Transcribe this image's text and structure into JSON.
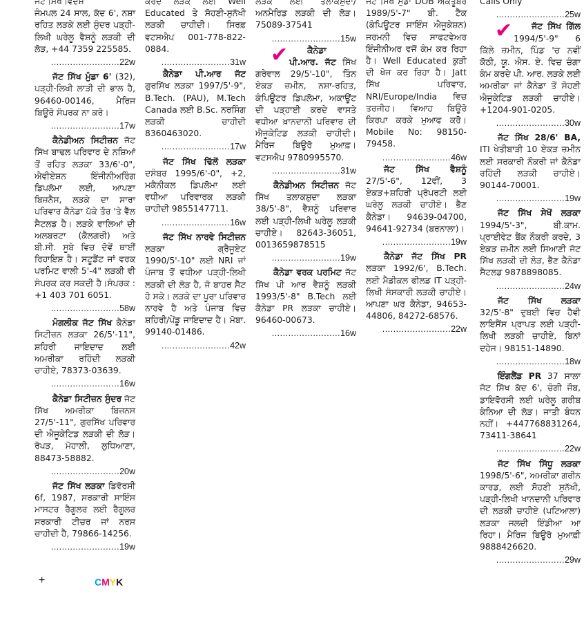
{
  "accent_color": "#e6007e",
  "columns": [
    {
      "fragment": "ਜੱਟ ਸਿੱਖ ਵਿਦੇਸ਼",
      "ads": [
        {
          "heading": "",
          "body": "ਜੰਮਪਲ 24 ਸਾਲ, ਕੱਦ 6', ਨਸ਼ਾ ਰਹਿਤ ਲੜਕੇ ਲਈ ਸੁੰਦਰ ਪੜ੍ਹੀ-ਲਿਖੀ ਘਰੇਲੂ ਵੈਸ਼ਨੂੰ ਲੜਕੀ ਦੀ ਲੋੜ, +44 7359 225585.",
          "code": "22w",
          "check": false,
          "noindent": true
        },
        {
          "heading": "ਜੱਟ ਸਿੱਖ ਮੁੰਡਾ 6'",
          "body": " (32), ਪੜ੍ਹੀ-ਲਿਖੀ ਲਾੜੀ ਦੀ ਭਾਲ ਹੈ, 96460-00146, ਮੈਰਿਜ ਬਿਊਰੋ ਸੰਪਰਕ ਨਾ ਕਰੋ।",
          "code": "17w",
          "check": false
        },
        {
          "heading": "ਕੈਨੇਡੀਅਨ ਸਿਟੀਜ਼ਨ",
          "body": " ਜੱਟ ਸਿੱਖ ਬਾਢਲ ਪਰਿਵਾਰ ਦੇ ਨਸ਼ਿਆਂ ਤੋਂ ਰਹਿਤ ਲੜਕਾ 33/6'-0\", ਐਵੀਏਸ਼ਨ ਇੰਜੀਨੀਅਰਿੰਗ ਡਿਪਲੋਮਾ ਲਈ, ਆਪਣਾ ਬਿਜ਼ਨੈਸ, ਲੜਕੇ ਦਾ ਸਾਰਾ ਪਰਿਵਾਰ ਕੈਨੇਡਾ ਪੱਕੇ ਤੌਰ 'ਤੇ ਵੈੱਲ ਸੈਟਲਡ ਹੈ। ਲੜਕੇ ਵਾਲਿਆਂ ਦੀ ਅਲਬਰਟਾ (ਕੈਲਗਰੀ) ਅਤੇ ਬੀ.ਸੀ. ਸੂਬੇ ਵਿਚ ਦੋਵੇਂ ਥਾਈਂ ਰਿਹਾਇਸ਼ ਹੈ। ਸਟੂਡੈਂਟ ਜਾਂ ਵਰਕ ਪਰਮਿਟ ਵਾਲੀ 5'-4\" ਲੜਕੀ ਵੀ ਸੰਪਰਕ ਕਰ ਸਕਦੀ ਹੈ।ਸੰਪਰਕ : +1 403 701 6051.",
          "code": "58w",
          "check": false
        },
        {
          "heading": "ਮੰਗਲੀਕ ਜੱਟ ਸਿੱਖ",
          "body": " ਕੈਨੇਡਾ ਸਿਟੀਜ਼ਨ ਲੜਕਾ 26/5'-11\", ਸ਼ਹਿਰੀ ਜਾਇਦਾਦ ਲਈ ਅਮਰੀਕਾ ਰਹਿੰਦੀ ਲੜਕੀ ਚਾਹੀਏ, 78373-03639.",
          "code": "16w",
          "check": false
        },
        {
          "heading": "ਕੈਨੇਡਾ ਸਿਟੀਜ਼ਨ ਸੁੰਦਰ",
          "body": " ਜੱਟ ਸਿੱਖ ਅਮਰੀਕਾ ਬਿਜ਼ਨਸ 27/5'-11\", ਗੁਰਸਿੱਖ ਪਰਿਵਾਰ ਦੀ ਐਜੂਕੇਟਿਡ ਲੜਕੀ ਦੀ ਲੋੜ। ਰੋਪੜ, ਮੋਹਾਲੀ, ਲੁਧਿਆਣਾ, 88473-58882.",
          "code": "20w",
          "check": false
        },
        {
          "heading": "ਜੱਟ ਸਿੱਖ ਲੜਕਾ",
          "body": " ਡਿਵੋਰਸੀ 6f, 1987, ਸਰਕਾਰੀ ਸਾਇੰਸ ਮਾਸਟਰ ਰੈਗੂਲਰ ਲਈ ਰੈਗੂਲਰ ਸਰਕਾਰੀ ਟੀਚਰ ਜਾਂ ਨਰਸ ਚਾਹੀਦੀ ਹੈ, 79866-14256.",
          "code": "19w",
          "check": false
        }
      ]
    },
    {
      "fragment": "ਕਰਦੇ ਲੜਕੇ ਲਈ Well Educated ਤੇ ਸੋਹਣੀ-ਸੁਨੱਖੀ ਲੜਕੀ ਚਾਹੀਦੀ। ਸਿਰਫ਼ ਵਟਸਐਪ 001-778-822-0884.",
      "fragment_code": "31w",
      "ads": [
        {
          "heading": "ਕੈਨੇਡਾ ਪੀ.ਆਰ ਜੱਟ",
          "body": " ਗੁਰਸਿੱਖ ਲੜਕਾ 1997/5'-9\", B.Tech. (PAU), M.Tech Canada ਲਈ B.Sc. ਨਰਸਿੰਗ ਲੜਕੀ ਚਾਹੀਦੀ 8360463020.",
          "code": "17w",
          "check": false
        },
        {
          "heading": "ਜੱਟ ਸਿੱਖ ਢਿੱਲੋਂ ਲੜਕਾ",
          "body": " ਦਸੰਬਰ 1995/6'-0\", +2, ਮਕੈਨੀਕਲ ਡਿਪਲੋਮਾ ਲਈ ਵਧੀਆ ਪਰਿਵਾਰਕ ਲੜਕੀ ਚਾਹੀਦੀ 9855147711.",
          "code": "16w",
          "check": false
        },
        {
          "heading": "ਜੱਟ ਸਿੱਖ ਨਾਰਵੇ ਸਿਟੀਜ਼ਨ",
          "body": " ਲੜਕਾ ਗ੍ਰੈਜੂਏਟ 1990/5'-10\" ਲਈ NRI ਜਾਂ ਪੰਜਾਬ ਤੋਂ ਵਧੀਆ ਪੜ੍ਹੀ-ਲਿਖੀ ਲੜਕੀ ਦੀ ਲੋੜ ਹੈ, ਜੋ ਬਾਹਰ ਸੈੱਟ ਹੋ ਸਕੇ। ਲੜਕੇ ਦਾ ਪੂਰਾ ਪਰਿਵਾਰ ਨਾਰਵੇ ਹੈ ਅਤੇ ਪੰਜਾਬ ਵਿਚ ਸ਼ਹਿਰੀ/ਪੇਂਡੂ ਜਾਇਦਾਦ ਹੈ। ਮੋਬਾ. 99140-01486.",
          "code": "42w",
          "check": false
        }
      ]
    },
    {
      "fragment": "ਲੜਕੇ ਲਈ ਤਲਾਕਸ਼ੁਦਾ/ਅਨਮੈਰਿਡ ਲੜਕੀ ਦੀ ਲੋੜ। 75089-37541",
      "fragment_code": "15w",
      "ads": [
        {
          "heading": "ਕੈਨੇਡਾ ਪੀ.ਆਰ. ਜੱਟ",
          "body": " ਸਿੱਖ ਗਰੇਵਾਲ 29/5'-10\", ਤਿੰਨ ਏਕੜ ਜ਼ਮੀਨ, ਨਸ਼ਾ-ਰਹਿਤ, ਕੰਪਿਊਟਰ ਡਿਪਲੋਮਾ, ਅਕਾਊਂਟ ਦੀ ਪੜ੍ਹਾਈ ਕਰਦੇ ਵਾਸਤੇ ਵਧੀਆ ਖ਼ਾਨਦਾਨੀ ਪਰਿਵਾਰ ਦੀ ਐਜੂਕੇਟਿਡ ਲੜਕੀ ਚਾਹੀਦੀ। ਮੈਰਿਜ ਬਿਊਰੋ ਮੁਆਫ਼। ਵਟਸਐਪ 9780995570.",
          "code": "31w",
          "check": true
        },
        {
          "heading": "ਕੈਨੇਡੀਅਨ ਸਿਟੀਜ਼ਨ",
          "body": " ਜੱਟ ਸਿੱਖ ਤਲਾਕਸ਼ੁਦਾ ਲੜਕਾ 38/5'-8\", ਵੈਸ਼ਨੂੰ ਪਰਿਵਾਰ ਲਈ ਪੜ੍ਹੀ-ਲਿਖੀ ਘਰੇਲੂ ਲੜਕੀ ਚਾਹੀਏ। 82643-36051, 0013659878515",
          "code": "19w",
          "check": false
        },
        {
          "heading": "ਕੈਨੇਡਾ ਵਰਕ ਪਰਮਿਟ",
          "body": " ਜੱਟ ਸਿੱਖ ਪੀ ਆਰ ਵੈਸ਼ਨੂੰ ਲੜਕੀ 1993/5'-8\" B.Tech ਲਈ ਕੈਨੇਡਾ PR ਲੜਕਾ ਚਾਹੀਏ। 96460-00673.",
          "code": "16w",
          "check": false
        }
      ]
    },
    {
      "fragment": "ਜੱਟ ਸਿੱਖ ਮੁੰਡਾ DOB ਅਕਤੂਬਰ 1989/5'-7\" ਬੀ. ਟੈੱਕ (ਕੰਪਿਊਟਰ ਸਾਇੰਸ ਐਜੂਕੇਸ਼ਨ) ਜਰਮਨੀ ਵਿਚ ਸਾਫਟਵੇਅਰ ਇੰਜੀਨੀਅਰ ਵਜੋਂ ਕੰਮ ਕਰ ਰਿਹਾ ਹੈ। Well Educated ਕੁੜੀ ਦੀ ਖੋਜ ਕਰ ਰਿਹਾ ਹੈ। Jatt ਸਿੱਖ ਪਰਿਵਾਰ, NRI/Europe/India ਵਿਚ ਤਰਜੀਹ। ਵਿਆਹ ਬਿਊਰੋ ਕਿਰਪਾ ਕਰਕੇ ਮੁਆਫ ਕਰੋ। Mobile No: 98150-79458.",
      "fragment_code": "46w",
      "ads": [
        {
          "heading": "ਜੱਟ ਸਿੱਖ ਵੈਸ਼ਨੂੰ",
          "body": " 27/5'-6\", 12ਵੀਂ, 3 ਏਕੜ+ਸ਼ਹਿਰੀ ਪ੍ਰੋਪਰਟੀ ਲਈ ਘਰੇਲੂ ਲੜਕੀ ਚਾਹੀਏ। ਭੈਣ ਕੈਨੇਡਾ। 94639-04700, 94641-92734 (ਬਰਨਾਲਾ)।",
          "code": "19w",
          "check": false
        },
        {
          "heading": "ਕੈਨੇਡਾ ਜੱਟ ਸਿੱਖ PR",
          "body": " ਲੜਕਾ 1992/6', B.Tech. ਲਈ ਮੈਡੀਕਲ ਫੀਲਡ IT ਪੜ੍ਹੀ-ਲਿਖੀ ਸੰਸਕਾਰੀ ਲੜਕੀ ਚਾਹੀਏ। ਆਪਣਾ ਘਰ ਕੈਨੇਡਾ, 94653-44806, 84272-68576.",
          "code": "22w",
          "check": false
        }
      ]
    },
    {
      "fragment": "Calls Only",
      "fragment_code": "25w",
      "ads": [
        {
          "heading": "ਜੱਟ ਸਿੱਖ ਗਿੱਲ",
          "body": " 1994/5'-9\" 6 ਕਿੱਲੇ ਜ਼ਮੀਨ, ਪਿੰਡ 'ਚ ਨਵੀਂ ਕੋਠੀ, ਯੂ. ਐਸ. ਏ. ਵਿਚ ਚੰਗਾ ਕੰਮ ਕਰਦੇ ਪੀ. ਆਰ. ਲੜਕੇ ਲਈ ਅਮਰੀਕਾ ਜਾਂ ਕੈਨੇਡਾ ਤੋਂ ਸੋਹਣੀ ਐਜੂਕੇਟਿਡ ਲੜਕੀ ਚਾਹੀਏ। +1204-901-0205.",
          "code": "30w",
          "check": true
        },
        {
          "heading": "ਜੱਟ ਸਿੱਖ 28/6' BA,",
          "body": " ITI ਖੇਤੀਬਾੜੀ 10 ਏਕੜ ਜ਼ਮੀਨ ਲਈ ਸਰਕਾਰੀ ਨੌਕਰੀ ਜਾਂ ਕੈਨੇਡਾ ਰਹਿੰਦੀ ਲੜਕੀ ਚਾਹੀਏ। 90144-70001.",
          "code": "19w",
          "check": false
        },
        {
          "heading": "ਜੱਟ ਸਿੱਖ ਸੇਖੋਂ ਲੜਕਾ",
          "body": " 1994/5'-3\", ਬੀ.ਕਾਮ. ਪ੍ਰਾਈਵੇਟ ਬੈਂਕ ਨੌਕਰੀ ਕਰਦੇ, 3 ਏਕੜ ਜ਼ਮੀਨ ਲਈ ਸਿਆਣੀ ਜੱਟ ਸਿੱਖ ਲੜਕੀ ਦੀ ਲੋੜ, ਭੈਣ ਕੈਨੇਡਾ ਸੈਟਲਡ 9878898085.",
          "code": "24w",
          "check": false
        },
        {
          "heading": "ਜੱਟ ਸਿੱਖ ਲੜਕਾ",
          "body": " 32/5'-8\" ਦੁਬਈ ਵਿਚ ਹੈਵੀ ਲਾਇਸੈਂਸ ਪ੍ਰਾਪਤ ਲਈ ਪੜ੍ਹੀ-ਲਿਖੀ ਲੜਕੀ ਚਾਹੀਏ, ਬਿਨਾਂ ਦਹੇਜ। 98151-14890.",
          "code": "18w",
          "check": false
        },
        {
          "heading": "ਇੰਗਲੈਂਡ PR",
          "body": " 37 ਸਾਲਾ ਜੱਟ ਸਿੱਖ ਕੱਦ 6', ਚੰਗੀ ਜੌਬ, ਡਾਇਵੋਰਸੀ ਲਈ ਘਰੇਲੂ ਗਰੀਬ ਕੰਨਿਆ ਦੀ ਲੋੜ। ਜਾਤੀ ਬੰਧਨ ਨਹੀਂ। +447768831264, 73411-38641",
          "code": "22w",
          "check": false
        },
        {
          "heading": "ਜੱਟ ਸਿੱਖ ਸਿੱਧੂ ਲੜਕਾ",
          "body": " 1998/5'-6\", ਅਮਰੀਕਾ ਗਰੀਨ ਕਾਰਡ, ਲਈ ਸੋਹਣੀ ਸੁਨੱਖੀ, ਪੜ੍ਹੀ-ਲਿਖੀ ਖਾਨਦਾਨੀ ਪਰਿਵਾਰ ਦੀ ਲੜਕੀ ਚਾਹੀਏ (ਪਟਿਆਲਾ) ਲੜਕਾ ਜਲਦੀ ਇੰਡੀਆ ਆ ਰਿਹਾ। ਮੈਰਿਜ ਬਿਊਰੋ ਮੁਆਫ਼ੀ 9888426620.",
          "code": "29w",
          "check": false
        }
      ]
    }
  ],
  "footer": {
    "plus": "+",
    "cmyk": [
      {
        "letter": "C",
        "color": "#00a0e9"
      },
      {
        "letter": "M",
        "color": "#e6007e"
      },
      {
        "letter": "Y",
        "color": "#f5d800"
      },
      {
        "letter": "K",
        "color": "#1a1a1a"
      }
    ]
  }
}
